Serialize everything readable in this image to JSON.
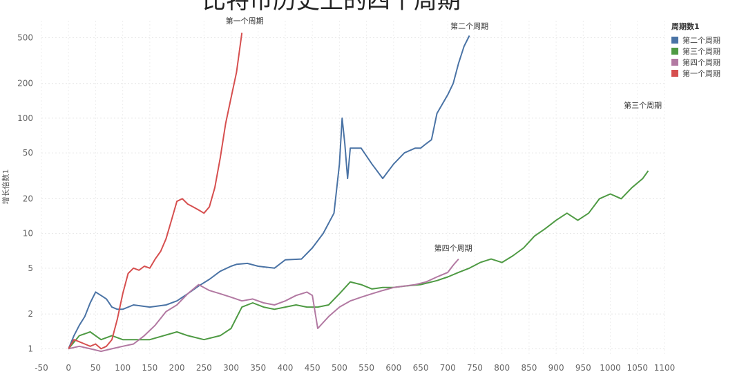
{
  "chart_data": {
    "type": "line",
    "title": "比特币历史上的四个周期",
    "xlabel": "",
    "ylabel": "增长倍数1",
    "xlim": [
      -50,
      1100
    ],
    "ylim": [
      0.9,
      700
    ],
    "yscale": "log",
    "grid": true,
    "legend_position": "top-right",
    "legend_title": "周期数1",
    "x_ticks": [
      -50,
      0,
      50,
      100,
      150,
      200,
      250,
      300,
      350,
      400,
      450,
      500,
      550,
      600,
      650,
      700,
      750,
      800,
      850,
      900,
      950,
      1000,
      1050,
      1100
    ],
    "y_ticks": [
      1,
      2,
      5,
      10,
      20,
      50,
      100,
      200,
      500
    ],
    "series": [
      {
        "name": "第二个周期",
        "color": "#4a73a5",
        "x": [
          0,
          10,
          20,
          30,
          40,
          50,
          60,
          70,
          80,
          90,
          100,
          120,
          150,
          180,
          200,
          220,
          240,
          260,
          280,
          300,
          310,
          330,
          350,
          380,
          400,
          430,
          450,
          470,
          490,
          500,
          505,
          510,
          515,
          520,
          540,
          560,
          580,
          600,
          620,
          640,
          650,
          660,
          670,
          680,
          700,
          710,
          720,
          730,
          740
        ],
        "y": [
          1,
          1.3,
          1.6,
          1.9,
          2.5,
          3.1,
          2.9,
          2.7,
          2.3,
          2.2,
          2.2,
          2.4,
          2.3,
          2.4,
          2.6,
          3.0,
          3.5,
          4.0,
          4.7,
          5.2,
          5.4,
          5.5,
          5.2,
          5.0,
          5.9,
          6.0,
          7.5,
          10.0,
          15.0,
          40.0,
          100.0,
          60.0,
          30.0,
          55.0,
          55.0,
          40.0,
          30.0,
          40.0,
          50.0,
          55.0,
          55.0,
          60.0,
          65.0,
          110.0,
          160.0,
          200.0,
          300.0,
          420.0,
          520.0
        ]
      },
      {
        "name": "第三个周期",
        "color": "#4e9a43",
        "x": [
          0,
          20,
          40,
          60,
          80,
          100,
          150,
          200,
          220,
          250,
          280,
          300,
          320,
          340,
          360,
          380,
          400,
          420,
          440,
          460,
          480,
          500,
          520,
          540,
          560,
          580,
          600,
          620,
          650,
          680,
          700,
          720,
          740,
          760,
          780,
          800,
          820,
          840,
          860,
          880,
          900,
          920,
          940,
          960,
          980,
          1000,
          1020,
          1040,
          1060,
          1070
        ],
        "y": [
          1,
          1.3,
          1.4,
          1.2,
          1.3,
          1.2,
          1.2,
          1.4,
          1.3,
          1.2,
          1.3,
          1.5,
          2.3,
          2.5,
          2.3,
          2.2,
          2.3,
          2.4,
          2.3,
          2.3,
          2.4,
          3.0,
          3.8,
          3.6,
          3.3,
          3.4,
          3.4,
          3.5,
          3.6,
          3.9,
          4.2,
          4.6,
          5.0,
          5.6,
          6.0,
          5.6,
          6.4,
          7.5,
          9.5,
          11.0,
          13.0,
          15.0,
          13.0,
          15.0,
          20.0,
          22.0,
          20.0,
          25.0,
          30.0,
          35.0
        ]
      },
      {
        "name": "第四个周期",
        "color": "#b279a2",
        "x": [
          0,
          20,
          40,
          60,
          80,
          100,
          120,
          140,
          160,
          180,
          200,
          220,
          240,
          260,
          280,
          300,
          320,
          340,
          360,
          380,
          400,
          420,
          440,
          450,
          460,
          480,
          500,
          520,
          540,
          560,
          580,
          600,
          620,
          640,
          660,
          680,
          700,
          710,
          720
        ],
        "y": [
          1,
          1.05,
          1.0,
          0.95,
          1.0,
          1.05,
          1.1,
          1.3,
          1.6,
          2.1,
          2.4,
          3.0,
          3.6,
          3.2,
          3.0,
          2.8,
          2.6,
          2.7,
          2.5,
          2.4,
          2.6,
          2.9,
          3.1,
          2.9,
          1.5,
          1.9,
          2.3,
          2.6,
          2.8,
          3.0,
          3.2,
          3.4,
          3.5,
          3.6,
          3.8,
          4.2,
          4.6,
          5.3,
          6.0
        ]
      },
      {
        "name": "第一个周期",
        "color": "#d64f4f",
        "x": [
          0,
          10,
          20,
          30,
          40,
          50,
          60,
          70,
          80,
          90,
          100,
          110,
          120,
          130,
          140,
          150,
          160,
          170,
          180,
          190,
          200,
          210,
          220,
          230,
          240,
          250,
          260,
          270,
          280,
          290,
          300,
          310,
          320
        ],
        "y": [
          1,
          1.2,
          1.15,
          1.1,
          1.05,
          1.1,
          1.0,
          1.05,
          1.2,
          1.8,
          3.0,
          4.5,
          5.0,
          4.8,
          5.2,
          5.0,
          6.0,
          7.0,
          9.0,
          13.0,
          19.0,
          20.0,
          18.0,
          17.0,
          16.0,
          15.0,
          17.0,
          25.0,
          45.0,
          90.0,
          150.0,
          250.0,
          550.0
        ]
      }
    ],
    "annotations": [
      {
        "text": "第一个周期",
        "x": 325,
        "y": 700
      },
      {
        "text": "第二个周期",
        "x": 740,
        "y": 630
      },
      {
        "text": "第三个周期",
        "x": 1060,
        "y": 130
      },
      {
        "text": "第四个周期",
        "x": 710,
        "y": 7.5
      }
    ]
  }
}
